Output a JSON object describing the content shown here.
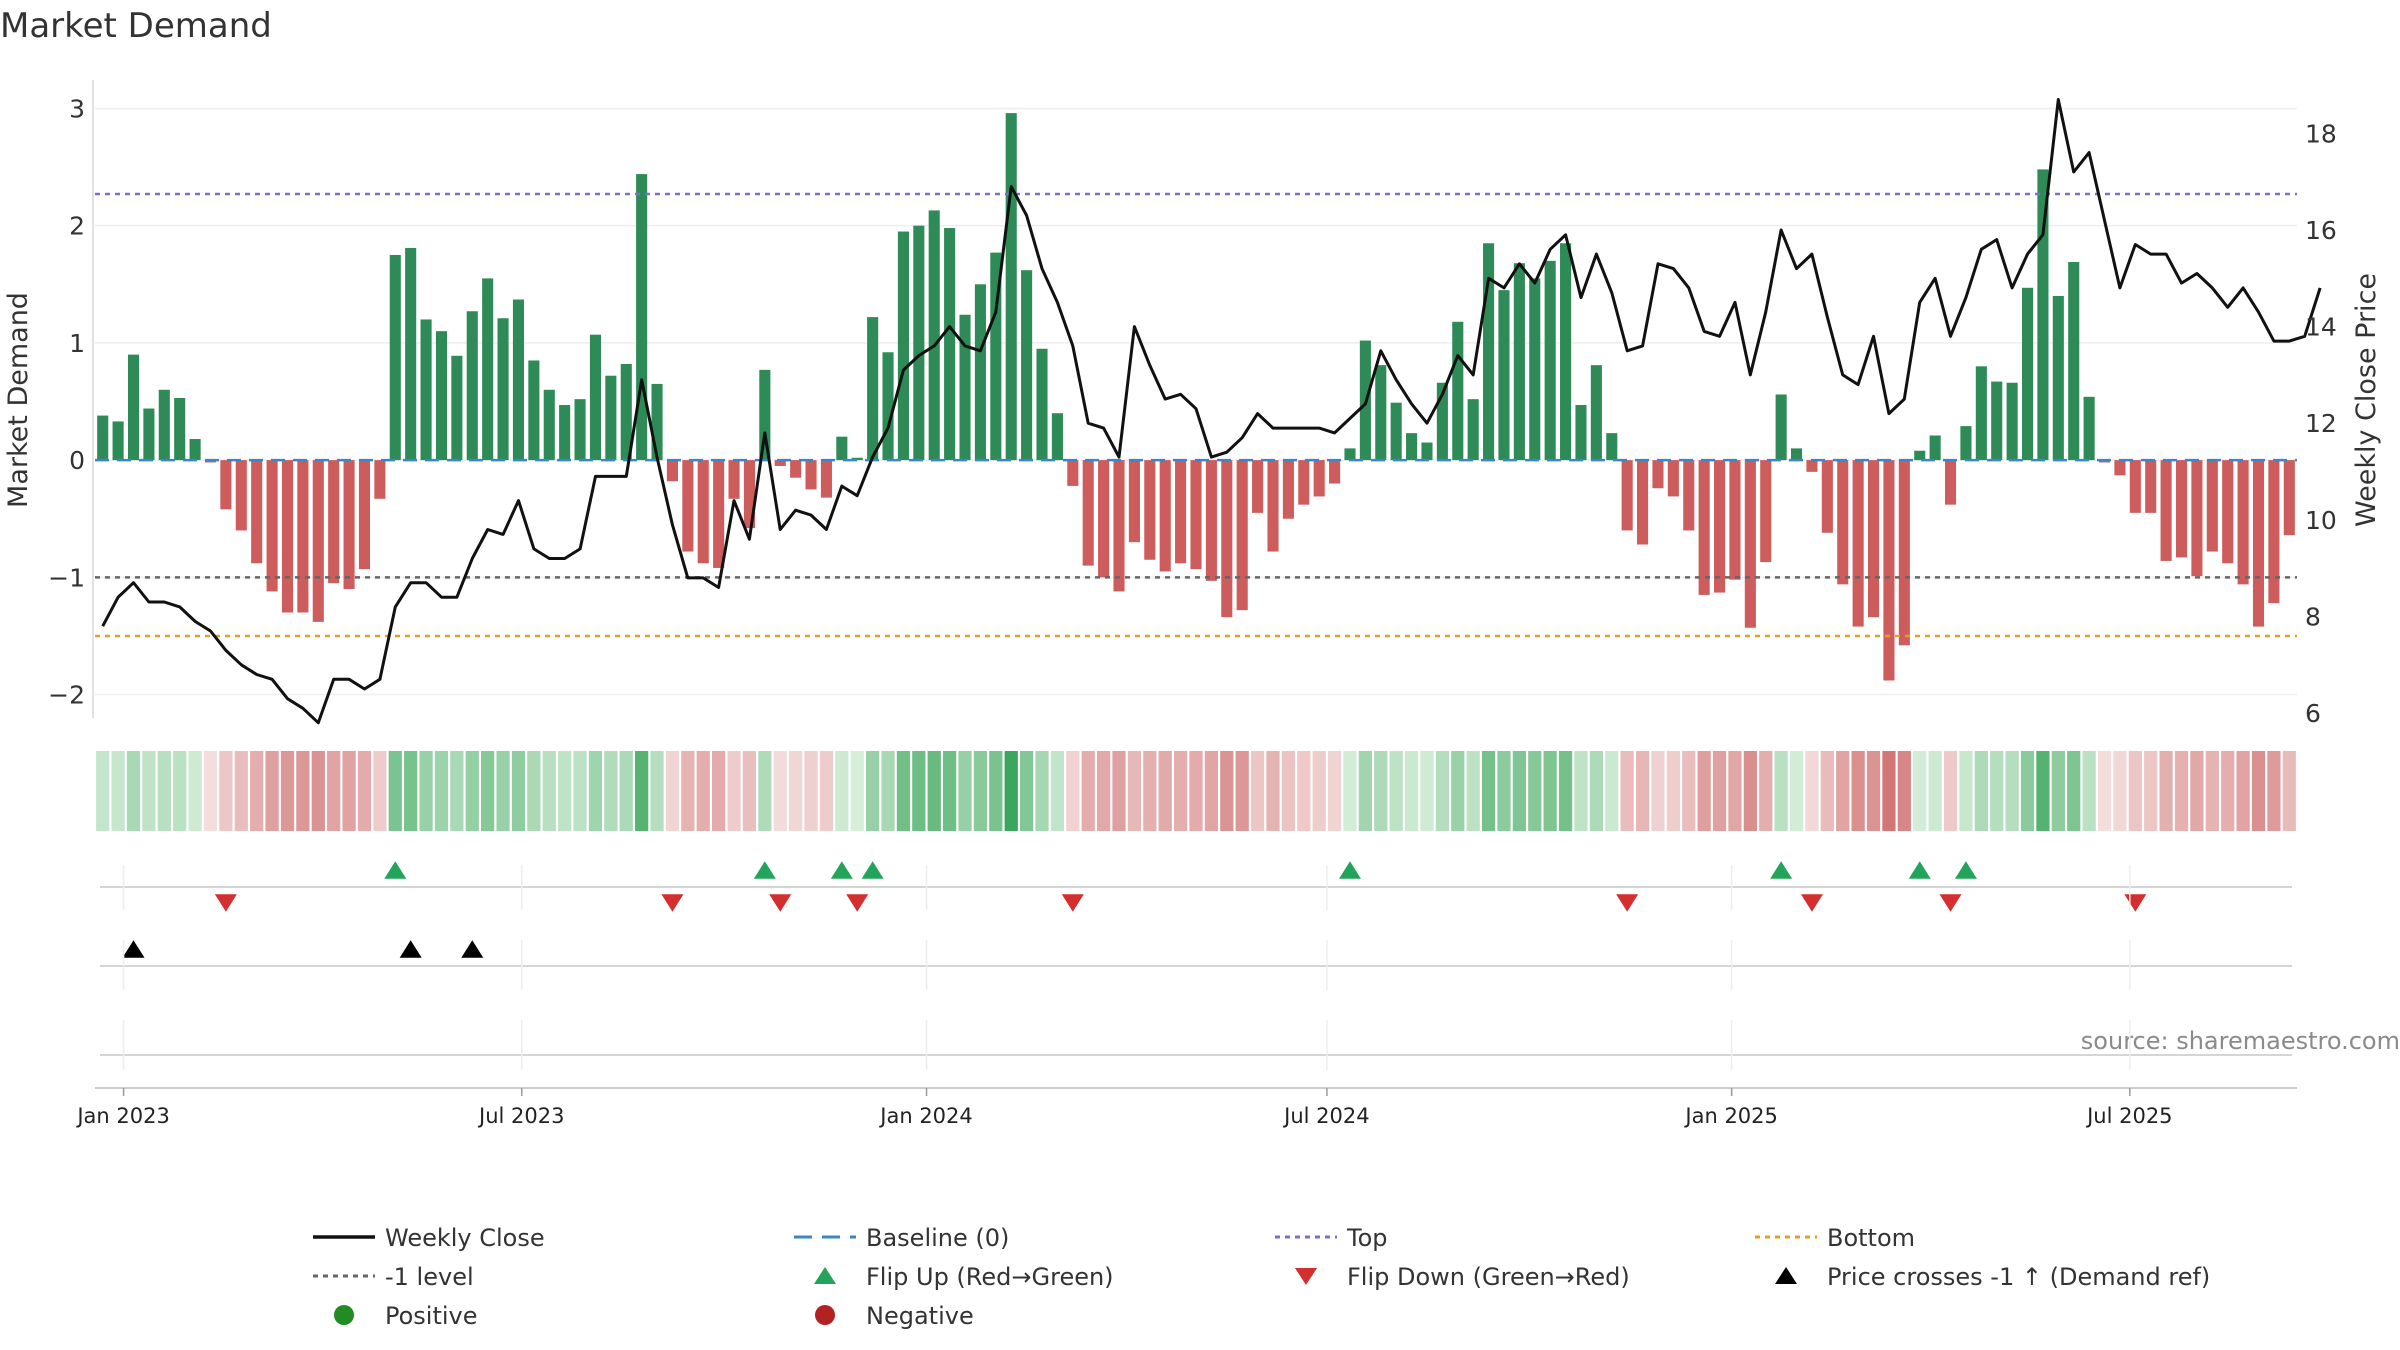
{
  "chart_data": {
    "type": "bar",
    "title": "Market Demand",
    "ylabel": "Market Demand",
    "y2label": "Weekly Close Price",
    "ylim": [
      -2.2,
      3.2
    ],
    "y2lim": [
      5.9,
      19.0
    ],
    "yticks": [
      -2,
      -1,
      0,
      1,
      2,
      3
    ],
    "yticklabels": [
      "−2",
      "−1",
      "0",
      "1",
      "2",
      "3"
    ],
    "y2ticks": [
      6,
      8,
      10,
      12,
      14,
      16,
      18
    ],
    "y2ticklabels": [
      "6",
      "8",
      "10",
      "12",
      "14",
      "16",
      "18"
    ],
    "top_level": 2.27,
    "bottom_level": -1.5,
    "minus1_level": -1.0,
    "x_start": "2022-12-19",
    "week_days": 7,
    "xticks": [
      {
        "date": "2023-01-01",
        "label": "Jan 2023"
      },
      {
        "date": "2023-07-01",
        "label": "Jul 2023"
      },
      {
        "date": "2024-01-01",
        "label": "Jan 2024"
      },
      {
        "date": "2024-07-01",
        "label": "Jul 2024"
      },
      {
        "date": "2025-01-01",
        "label": "Jan 2025"
      },
      {
        "date": "2025-07-01",
        "label": "Jul 2025"
      }
    ],
    "demand": [
      0.38,
      0.33,
      0.9,
      0.44,
      0.6,
      0.53,
      0.18,
      -0.02,
      -0.42,
      -0.6,
      -0.88,
      -1.12,
      -1.3,
      -1.3,
      -1.38,
      -1.05,
      -1.1,
      -0.93,
      -0.33,
      1.75,
      1.81,
      1.2,
      1.1,
      0.89,
      1.27,
      1.55,
      1.21,
      1.37,
      0.85,
      0.6,
      0.47,
      0.52,
      1.07,
      0.72,
      0.82,
      2.44,
      0.65,
      -0.18,
      -0.78,
      -0.88,
      -0.92,
      -0.33,
      -0.58,
      0.77,
      -0.05,
      -0.15,
      -0.25,
      -0.32,
      0.2,
      0.02,
      1.22,
      0.92,
      1.95,
      2.0,
      2.13,
      1.98,
      1.24,
      1.5,
      1.77,
      2.96,
      1.62,
      0.95,
      0.4,
      -0.22,
      -0.9,
      -1.0,
      -1.12,
      -0.7,
      -0.85,
      -0.95,
      -0.88,
      -0.93,
      -1.03,
      -1.34,
      -1.28,
      -0.45,
      -0.78,
      -0.5,
      -0.38,
      -0.31,
      -0.2,
      0.1,
      1.02,
      0.81,
      0.49,
      0.23,
      0.15,
      0.66,
      1.18,
      0.52,
      1.85,
      1.45,
      1.68,
      1.55,
      1.7,
      1.85,
      0.47,
      0.81,
      0.23,
      -0.6,
      -0.72,
      -0.24,
      -0.31,
      -0.6,
      -1.15,
      -1.13,
      -1.02,
      -1.43,
      -0.87,
      0.56,
      0.1,
      -0.1,
      -0.62,
      -1.06,
      -1.42,
      -1.34,
      -1.88,
      -1.58,
      0.08,
      0.21,
      -0.38,
      0.29,
      0.8,
      0.67,
      0.66,
      1.47,
      2.48,
      1.4,
      1.69,
      0.54,
      -0.02,
      -0.13,
      -0.45,
      -0.45,
      -0.86,
      -0.83,
      -0.99,
      -0.78,
      -0.88,
      -1.06,
      -1.42,
      -1.22,
      -0.64
    ],
    "close": [
      7.8,
      8.4,
      8.7,
      8.3,
      8.3,
      8.2,
      7.9,
      7.7,
      7.3,
      7.0,
      6.8,
      6.7,
      6.3,
      6.1,
      5.8,
      6.7,
      6.7,
      6.5,
      6.7,
      8.2,
      8.7,
      8.7,
      8.4,
      8.4,
      9.2,
      9.8,
      9.7,
      10.4,
      9.4,
      9.2,
      9.2,
      9.4,
      10.9,
      10.9,
      10.9,
      12.9,
      11.3,
      9.9,
      8.8,
      8.8,
      8.6,
      10.4,
      9.6,
      11.8,
      9.8,
      10.2,
      10.1,
      9.8,
      10.7,
      10.5,
      11.3,
      11.9,
      13.1,
      13.4,
      13.6,
      14.0,
      13.6,
      13.5,
      14.3,
      16.9,
      16.3,
      15.2,
      14.5,
      13.6,
      12.0,
      11.9,
      11.3,
      14.0,
      13.2,
      12.5,
      12.6,
      12.3,
      11.3,
      11.4,
      11.7,
      12.2,
      11.9,
      11.9,
      11.9,
      11.9,
      11.8,
      12.1,
      12.4,
      13.5,
      12.9,
      12.4,
      12.0,
      12.6,
      13.4,
      13.0,
      15.0,
      14.8,
      15.3,
      14.9,
      15.6,
      15.9,
      14.6,
      15.5,
      14.7,
      13.5,
      13.6,
      15.3,
      15.2,
      14.8,
      13.9,
      13.8,
      14.5,
      13.0,
      14.3,
      16.0,
      15.2,
      15.5,
      14.2,
      13.0,
      12.8,
      13.8,
      12.2,
      12.5,
      14.5,
      15.0,
      13.8,
      14.6,
      15.6,
      15.8,
      14.8,
      15.5,
      15.9,
      18.7,
      17.2,
      17.6,
      16.2,
      14.8,
      15.7,
      15.5,
      15.5,
      14.9,
      15.1,
      14.8,
      14.4,
      14.8,
      14.3,
      13.7,
      13.7,
      13.8,
      14.8
    ],
    "flip_up_weeks": [
      19,
      43,
      48,
      50,
      81,
      109,
      118,
      121
    ],
    "flip_down_weeks": [
      8,
      37,
      44,
      49,
      63,
      99,
      111,
      120,
      132
    ],
    "cross_up_weeks": [
      2,
      20,
      24
    ],
    "annotation": "source: sharemaestro.com",
    "legend": [
      {
        "label": "Weekly Close",
        "kind": "line",
        "color": "#111111"
      },
      {
        "label": "Baseline (0)",
        "kind": "dash",
        "color": "#3a86c8"
      },
      {
        "label": "Top",
        "kind": "dot",
        "color": "#7a70c9"
      },
      {
        "label": "Bottom",
        "kind": "dot",
        "color": "#e69d2a"
      },
      {
        "label": "-1 level",
        "kind": "dot",
        "color": "#666666"
      },
      {
        "label": "Flip Up (Red→Green)",
        "kind": "tri-up",
        "color": "#22a55a"
      },
      {
        "label": "Flip Down (Green→Red)",
        "kind": "tri-down",
        "color": "#d32f2f"
      },
      {
        "label": "Price crosses -1 ↑ (Demand ref)",
        "kind": "tri-up",
        "color": "#000000"
      },
      {
        "label": "Positive",
        "kind": "circle",
        "color": "#228b22"
      },
      {
        "label": "Negative",
        "kind": "circle",
        "color": "#b22222"
      }
    ],
    "colors": {
      "positive_bar": "#2e8b57",
      "negative_bar": "#cd5c5c",
      "close_line": "#111111",
      "baseline": "#3a86c8",
      "top": "#7a70c9",
      "bottom": "#e69d2a",
      "minus1": "#666666",
      "flip_up": "#22a55a",
      "flip_down": "#d32f2f",
      "cross_up": "#000000"
    }
  }
}
